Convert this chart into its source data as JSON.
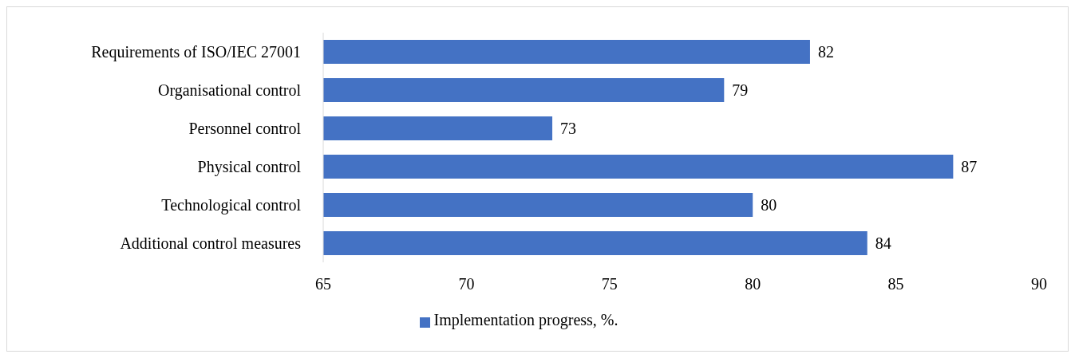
{
  "chart_data": {
    "type": "bar",
    "orientation": "horizontal",
    "categories": [
      "Requirements of ISO/IEC 27001",
      "Organisational control",
      "Personnel control",
      "Physical control",
      "Technological control",
      "Additional control measures"
    ],
    "series": [
      {
        "name": "Implementation progress, %.",
        "color": "#4472c4",
        "values": [
          82,
          79,
          73,
          87,
          80,
          84
        ]
      }
    ],
    "xlim": [
      65,
      90
    ],
    "xticks": [
      65,
      70,
      75,
      80,
      85,
      90
    ],
    "data_labels": true,
    "legend": "bottom"
  }
}
